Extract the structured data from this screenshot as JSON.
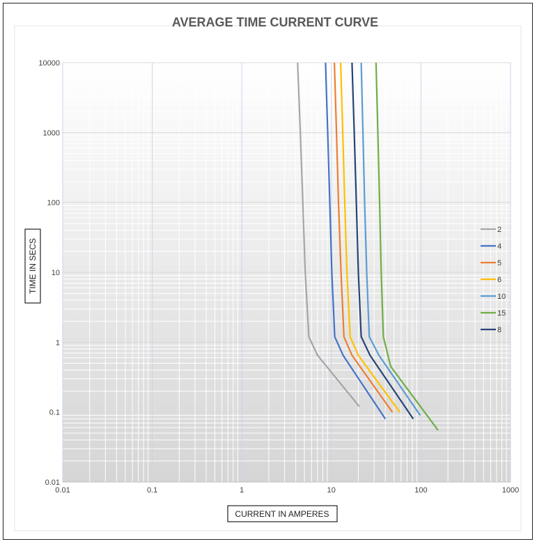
{
  "chart_data": {
    "type": "line",
    "title": "AVERAGE TIME CURRENT CURVE",
    "xlabel": "CURRENT IN AMPERES",
    "ylabel": "TIME IN SECS",
    "xscale": "log",
    "yscale": "log",
    "xlim": [
      0.01,
      1000
    ],
    "ylim": [
      0.01,
      10000
    ],
    "xticks": [
      "0.01",
      "0.1",
      "1",
      "10",
      "100",
      "1000"
    ],
    "yticks": [
      "0.01",
      "0.1",
      "1",
      "10",
      "100",
      "1000",
      "10000"
    ],
    "grid": true,
    "legend_position": "right",
    "series": [
      {
        "name": "2",
        "color": "#a5a5a5",
        "points": [
          [
            4.2,
            10000
          ],
          [
            4.5,
            1000
          ],
          [
            4.8,
            100
          ],
          [
            5.1,
            10
          ],
          [
            5.6,
            1.2
          ],
          [
            7,
            0.65
          ],
          [
            20.5,
            0.12
          ]
        ]
      },
      {
        "name": "4",
        "color": "#4472c4",
        "points": [
          [
            8.6,
            10000
          ],
          [
            9.1,
            1000
          ],
          [
            9.6,
            100
          ],
          [
            10.1,
            10
          ],
          [
            10.9,
            1.2
          ],
          [
            13.5,
            0.65
          ],
          [
            40,
            0.08
          ]
        ]
      },
      {
        "name": "5",
        "color": "#ed7d31",
        "points": [
          [
            10.8,
            10000
          ],
          [
            11.4,
            1000
          ],
          [
            12,
            100
          ],
          [
            12.8,
            10
          ],
          [
            13.8,
            1.2
          ],
          [
            17,
            0.65
          ],
          [
            48,
            0.1
          ]
        ]
      },
      {
        "name": "6",
        "color": "#ffc000",
        "points": [
          [
            12.7,
            10000
          ],
          [
            13.4,
            1000
          ],
          [
            14.1,
            100
          ],
          [
            14.9,
            10
          ],
          [
            16.2,
            1.2
          ],
          [
            20,
            0.65
          ],
          [
            58,
            0.1
          ]
        ]
      },
      {
        "name": "10",
        "color": "#5b9bd5",
        "points": [
          [
            21.5,
            10000
          ],
          [
            22.5,
            1000
          ],
          [
            23.5,
            100
          ],
          [
            24.8,
            10
          ],
          [
            26.5,
            1.2
          ],
          [
            34,
            0.65
          ],
          [
            98,
            0.09
          ]
        ]
      },
      {
        "name": "15",
        "color": "#70ad47",
        "points": [
          [
            31.5,
            10000
          ],
          [
            33,
            1000
          ],
          [
            34.5,
            100
          ],
          [
            36,
            10
          ],
          [
            38,
            1.2
          ],
          [
            46,
            0.45
          ],
          [
            155,
            0.055
          ]
        ]
      },
      {
        "name": "8",
        "color": "#264478",
        "points": [
          [
            17,
            10000
          ],
          [
            18,
            1000
          ],
          [
            19,
            100
          ],
          [
            20,
            10
          ],
          [
            21.5,
            1.2
          ],
          [
            27,
            0.65
          ],
          [
            82,
            0.08
          ]
        ]
      }
    ]
  }
}
